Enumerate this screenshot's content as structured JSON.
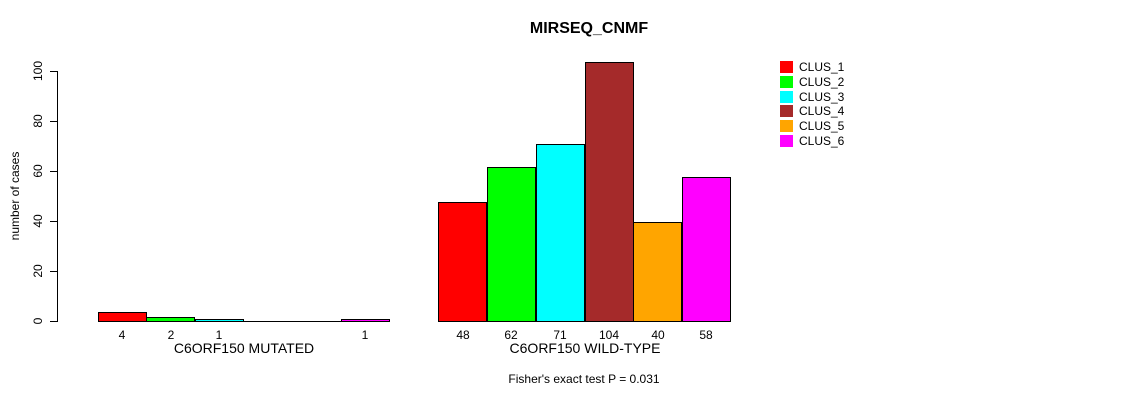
{
  "figure": {
    "title": "MIRSEQ_CNMF",
    "y_axis_label": "number of cases",
    "footer_note": "Fisher's exact test P = 0.031"
  },
  "legend": {
    "items": [
      {
        "label": "CLUS_1",
        "color": "#FF0000"
      },
      {
        "label": "CLUS_2",
        "color": "#00FF00"
      },
      {
        "label": "CLUS_3",
        "color": "#00FFFF"
      },
      {
        "label": "CLUS_4",
        "color": "#A52A2A"
      },
      {
        "label": "CLUS_5",
        "color": "#FFA500"
      },
      {
        "label": "CLUS_6",
        "color": "#FF00FF"
      }
    ]
  },
  "chart_data": {
    "type": "bar",
    "title": "MIRSEQ_CNMF",
    "ylabel": "number of cases",
    "ylim": [
      0,
      100
    ],
    "yticks": [
      0,
      20,
      40,
      60,
      80,
      100
    ],
    "categories": [
      "C6ORF150 MUTATED",
      "C6ORF150 WILD-TYPE"
    ],
    "series": [
      {
        "name": "CLUS_1",
        "color": "#FF0000",
        "values": [
          4,
          48
        ]
      },
      {
        "name": "CLUS_2",
        "color": "#00FF00",
        "values": [
          2,
          62
        ]
      },
      {
        "name": "CLUS_3",
        "color": "#00FFFF",
        "values": [
          1,
          71
        ]
      },
      {
        "name": "CLUS_4",
        "color": "#A52A2A",
        "values": [
          0,
          104
        ]
      },
      {
        "name": "CLUS_5",
        "color": "#FFA500",
        "values": [
          0,
          40
        ]
      },
      {
        "name": "CLUS_6",
        "color": "#FF00FF",
        "values": [
          1,
          58
        ]
      }
    ],
    "bar_value_labels_shown": true,
    "zero_value_labels_hidden": true,
    "annotation": "Fisher's exact test P = 0.031",
    "legend_position": "right",
    "grid": false
  }
}
